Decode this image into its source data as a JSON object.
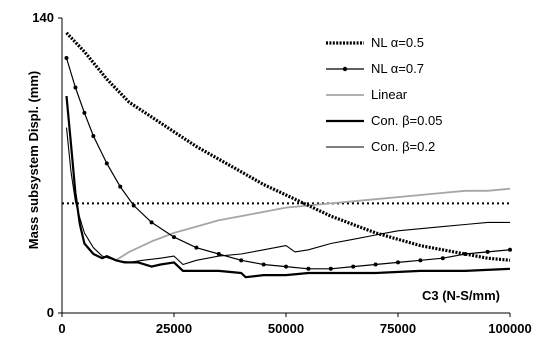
{
  "chart_data": {
    "type": "line",
    "title": "",
    "xlabel": "C3 (N-S/mm)",
    "ylabel": "Mass subsystem Displ. (mm)",
    "xlim": [
      0,
      100000
    ],
    "ylim": [
      0,
      140
    ],
    "x_ticks": [
      "0",
      "25000",
      "50000",
      "75000",
      "100000"
    ],
    "y_ticks": [
      "0",
      "140"
    ],
    "grid": false,
    "legend_position": "top-right",
    "reference_line": {
      "y": 52,
      "style": "dotted"
    },
    "series": [
      {
        "name": "NL α=0.5",
        "style": "thick-dotted",
        "color": "#000000",
        "points": [
          [
            1000,
            133
          ],
          [
            5000,
            124
          ],
          [
            10000,
            111
          ],
          [
            15000,
            100
          ],
          [
            20000,
            93
          ],
          [
            25000,
            86
          ],
          [
            30000,
            79
          ],
          [
            35000,
            73
          ],
          [
            40000,
            67
          ],
          [
            45000,
            61
          ],
          [
            50000,
            56
          ],
          [
            55000,
            51
          ],
          [
            60000,
            46
          ],
          [
            65000,
            42
          ],
          [
            70000,
            38
          ],
          [
            75000,
            35
          ],
          [
            80000,
            32
          ],
          [
            85000,
            30
          ],
          [
            90000,
            28
          ],
          [
            95000,
            26
          ],
          [
            100000,
            25
          ]
        ]
      },
      {
        "name": "NL α=0.7",
        "style": "line-markers",
        "color": "#000000",
        "points": [
          [
            1000,
            121
          ],
          [
            3000,
            107
          ],
          [
            5000,
            95
          ],
          [
            7000,
            84
          ],
          [
            10000,
            71
          ],
          [
            13000,
            60
          ],
          [
            16000,
            51
          ],
          [
            20000,
            43
          ],
          [
            25000,
            36
          ],
          [
            30000,
            31
          ],
          [
            35000,
            28
          ],
          [
            40000,
            25
          ],
          [
            45000,
            23
          ],
          [
            50000,
            22
          ],
          [
            55000,
            21
          ],
          [
            60000,
            21
          ],
          [
            65000,
            22
          ],
          [
            70000,
            23
          ],
          [
            75000,
            24
          ],
          [
            80000,
            25
          ],
          [
            85000,
            26
          ],
          [
            90000,
            28
          ],
          [
            95000,
            29
          ],
          [
            100000,
            30
          ]
        ]
      },
      {
        "name": "Linear",
        "style": "solid",
        "color": "#a6a6a6",
        "points": [
          [
            12000,
            25
          ],
          [
            15000,
            29
          ],
          [
            20000,
            34
          ],
          [
            25000,
            38
          ],
          [
            30000,
            41
          ],
          [
            35000,
            44
          ],
          [
            40000,
            46
          ],
          [
            45000,
            48
          ],
          [
            50000,
            50
          ],
          [
            55000,
            51
          ],
          [
            60000,
            52
          ],
          [
            65000,
            53
          ],
          [
            70000,
            54
          ],
          [
            75000,
            55
          ],
          [
            80000,
            56
          ],
          [
            85000,
            57
          ],
          [
            90000,
            58
          ],
          [
            95000,
            58
          ],
          [
            100000,
            59
          ]
        ]
      },
      {
        "name": "Con. β=0.05",
        "style": "thick-solid",
        "color": "#000000",
        "points": [
          [
            1000,
            103
          ],
          [
            2000,
            80
          ],
          [
            3000,
            57
          ],
          [
            4000,
            42
          ],
          [
            5000,
            33
          ],
          [
            7000,
            28
          ],
          [
            9000,
            26
          ],
          [
            10000,
            27
          ],
          [
            12000,
            25
          ],
          [
            14000,
            24
          ],
          [
            17000,
            24
          ],
          [
            20000,
            22
          ],
          [
            22000,
            23
          ],
          [
            25000,
            24
          ],
          [
            27000,
            20
          ],
          [
            30000,
            20
          ],
          [
            35000,
            20
          ],
          [
            40000,
            19
          ],
          [
            41000,
            17
          ],
          [
            45000,
            18
          ],
          [
            50000,
            18
          ],
          [
            55000,
            19
          ],
          [
            60000,
            19
          ],
          [
            70000,
            19
          ],
          [
            80000,
            20
          ],
          [
            90000,
            20
          ],
          [
            100000,
            21
          ]
        ]
      },
      {
        "name": "Con. β=0.2",
        "style": "thin-solid",
        "color": "#000000",
        "points": [
          [
            1000,
            88
          ],
          [
            2000,
            67
          ],
          [
            3000,
            53
          ],
          [
            4000,
            45
          ],
          [
            5000,
            38
          ],
          [
            7000,
            31
          ],
          [
            9000,
            27
          ],
          [
            12000,
            25
          ],
          [
            15000,
            24
          ],
          [
            18000,
            25
          ],
          [
            22000,
            26
          ],
          [
            25000,
            27
          ],
          [
            27000,
            23
          ],
          [
            30000,
            25
          ],
          [
            35000,
            27
          ],
          [
            40000,
            28
          ],
          [
            45000,
            30
          ],
          [
            50000,
            32
          ],
          [
            52000,
            29
          ],
          [
            55000,
            30
          ],
          [
            60000,
            33
          ],
          [
            65000,
            35
          ],
          [
            70000,
            37
          ],
          [
            75000,
            39
          ],
          [
            80000,
            40
          ],
          [
            85000,
            41
          ],
          [
            90000,
            42
          ],
          [
            95000,
            43
          ],
          [
            100000,
            43
          ]
        ]
      }
    ]
  }
}
